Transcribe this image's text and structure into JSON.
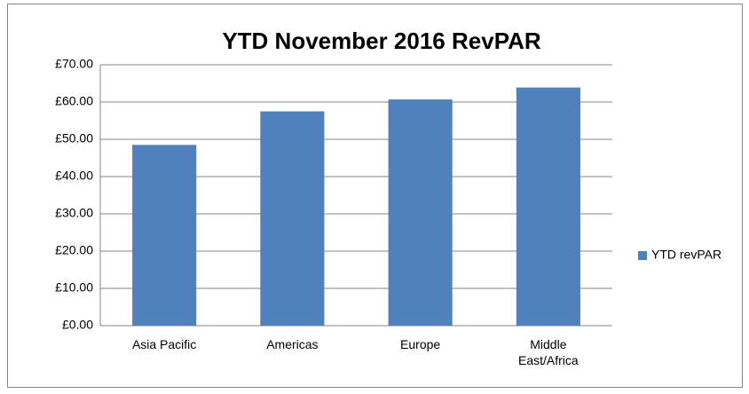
{
  "chart_data": {
    "type": "bar",
    "title": "YTD November 2016 RevPAR",
    "categories": [
      "Asia Pacific",
      "Americas",
      "Europe",
      "Middle East/Africa"
    ],
    "series": [
      {
        "name": "YTD revPAR",
        "color": "#4f81bd",
        "values": [
          48.5,
          57.5,
          60.7,
          63.9
        ]
      }
    ],
    "ylim": [
      0,
      70
    ],
    "yticks": [
      {
        "value": 0,
        "label": "£0.00"
      },
      {
        "value": 10,
        "label": "£10.00"
      },
      {
        "value": 20,
        "label": "£20.00"
      },
      {
        "value": 30,
        "label": "£30.00"
      },
      {
        "value": 40,
        "label": "£40.00"
      },
      {
        "value": 50,
        "label": "£50.00"
      },
      {
        "value": 60,
        "label": "£60.00"
      },
      {
        "value": 70,
        "label": "£70.00"
      }
    ],
    "grid": true,
    "legend": "right"
  }
}
